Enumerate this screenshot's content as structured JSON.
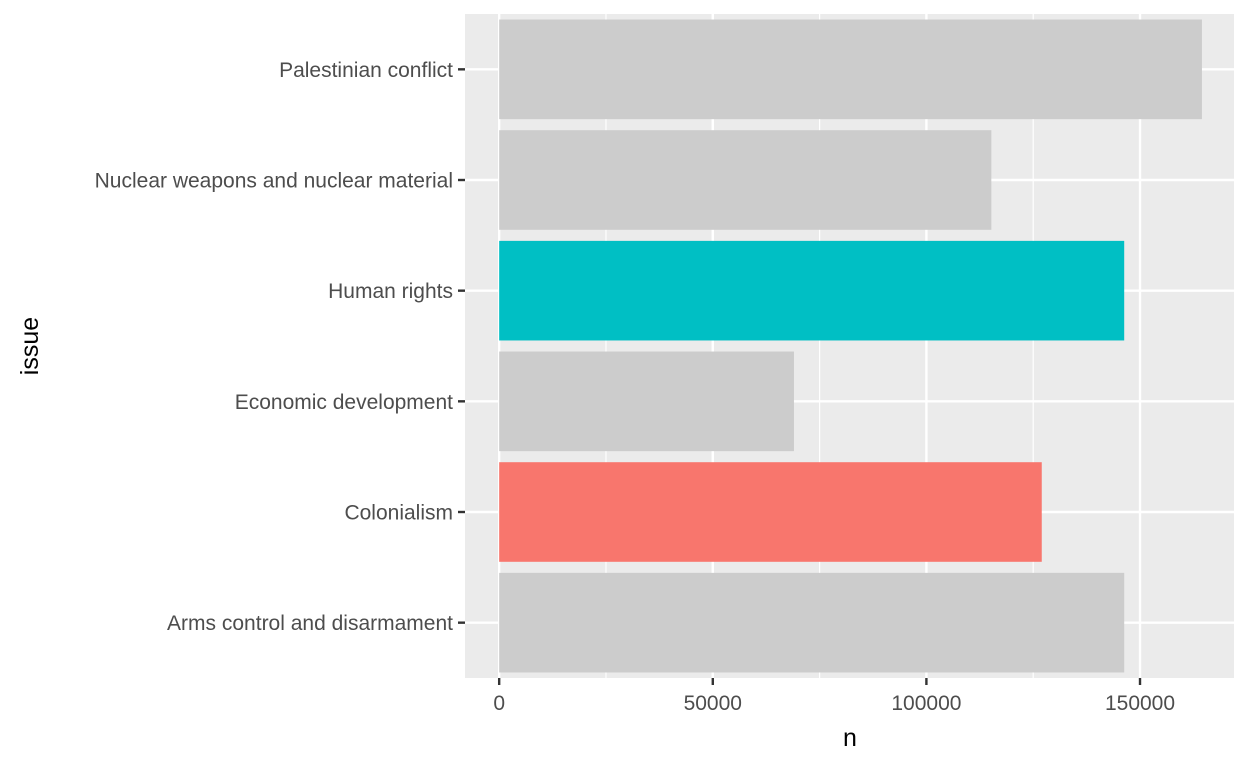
{
  "chart_data": {
    "type": "bar",
    "orientation": "horizontal",
    "title": "",
    "xlabel": "n",
    "ylabel": "issue",
    "xlim": [
      -8000,
      172000
    ],
    "x_ticks": [
      0,
      50000,
      100000,
      150000
    ],
    "x_tick_labels": [
      "0",
      "50000",
      "100000",
      "150000"
    ],
    "grid": true,
    "legend": "none",
    "categories": [
      "Palestinian conflict",
      "Nuclear weapons and nuclear material",
      "Human rights",
      "Economic development",
      "Colonialism",
      "Arms control and disarmament"
    ],
    "values": [
      164500,
      115200,
      146300,
      69000,
      127000,
      146300
    ],
    "colors": [
      "#cccccc",
      "#cccccc",
      "#00bfc4",
      "#cccccc",
      "#f8766d",
      "#cccccc"
    ],
    "panel_background": "#ebebeb",
    "grid_color": "#ffffff"
  }
}
